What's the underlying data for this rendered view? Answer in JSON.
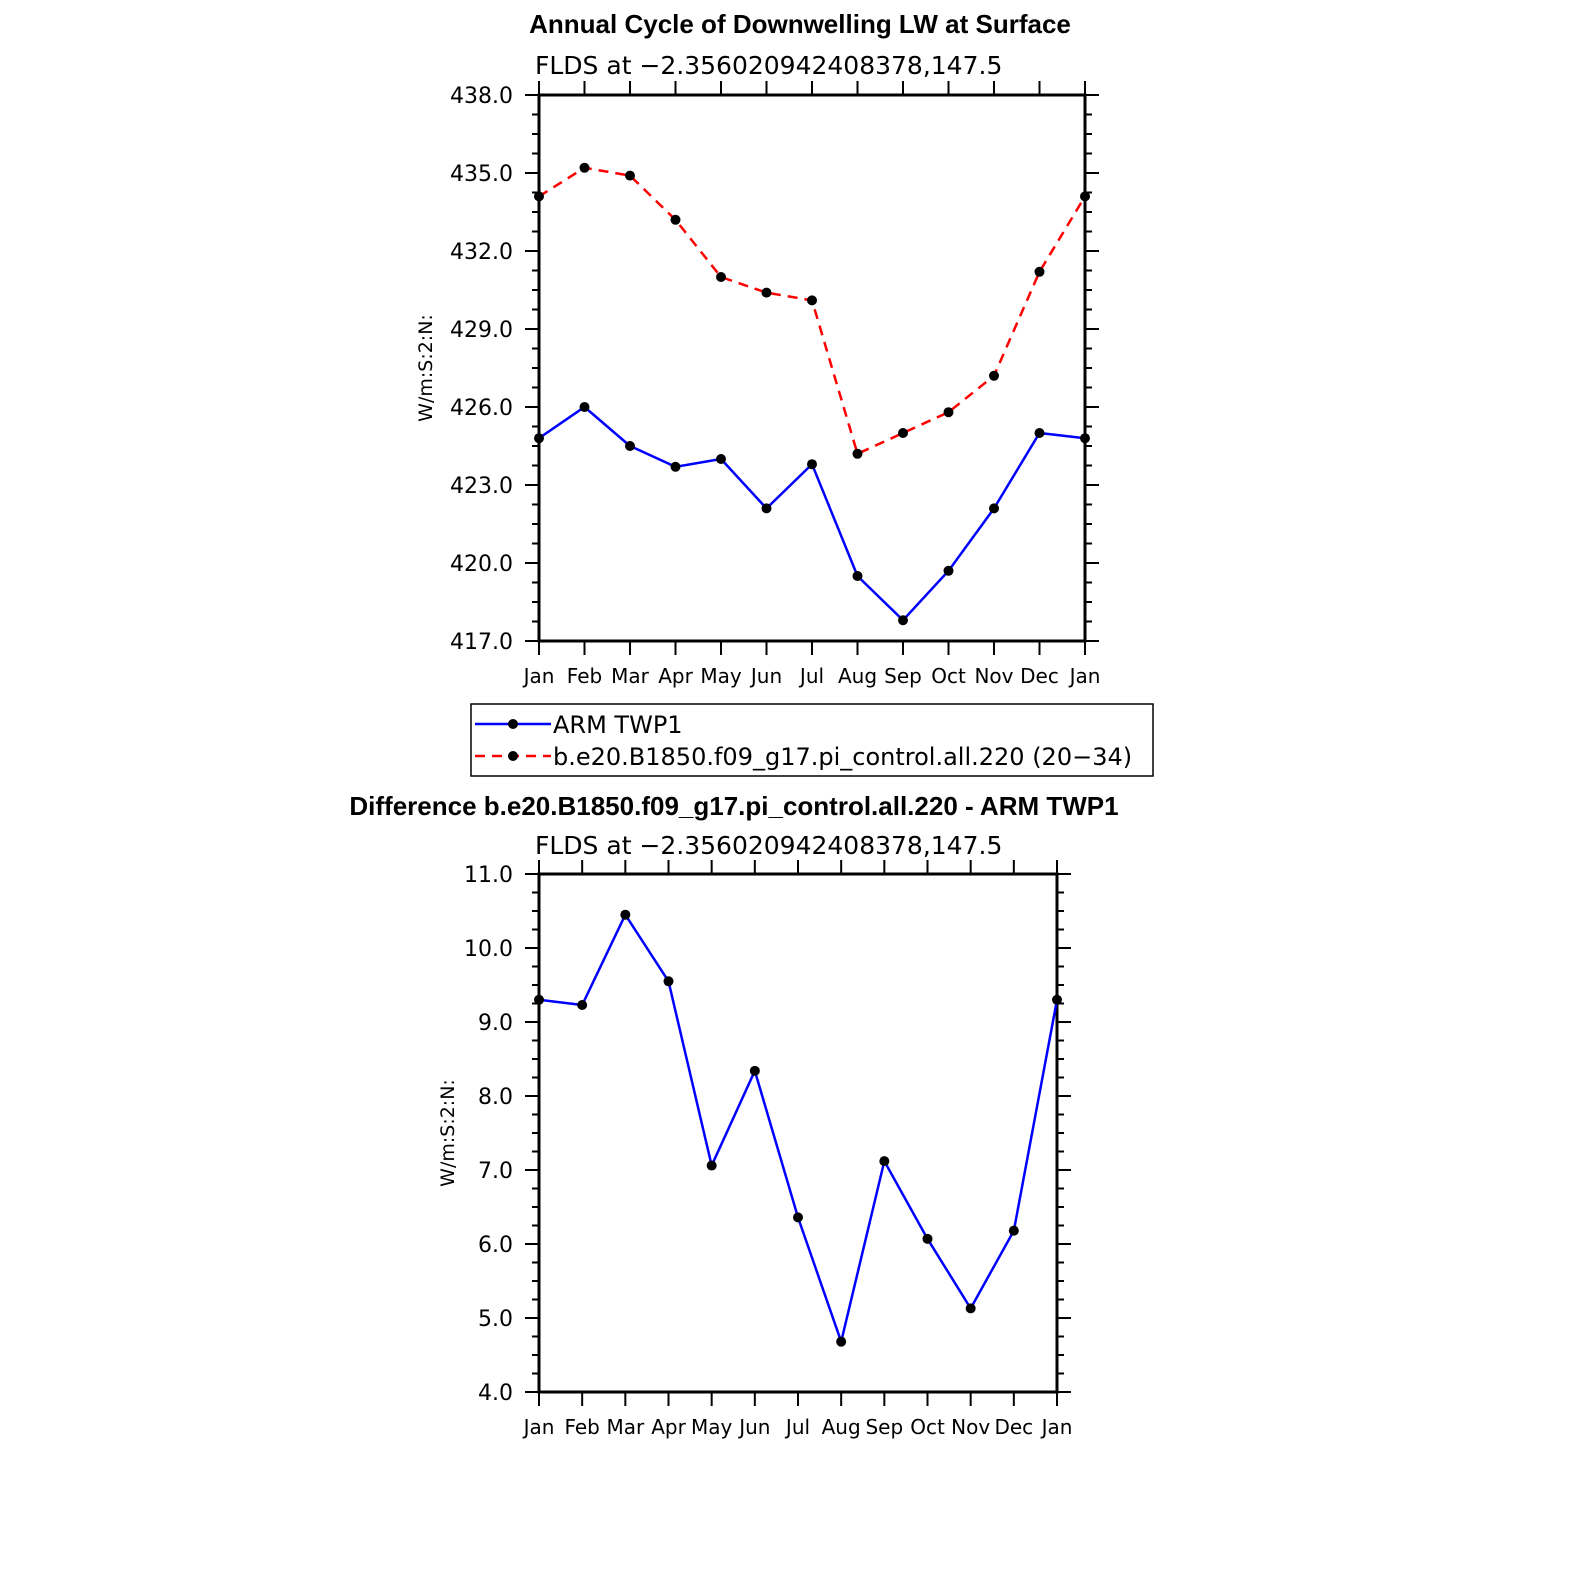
{
  "chart_data": [
    {
      "type": "line",
      "title": "Annual Cycle of Downwelling LW at Surface",
      "subtitle": "FLDS at −2.356020942408378,147.5",
      "ylabel": "W/m:S:2:N:",
      "ylim": [
        417.0,
        438.0
      ],
      "yticks": [
        "417.0",
        "420.0",
        "423.0",
        "426.0",
        "429.0",
        "432.0",
        "435.0",
        "438.0"
      ],
      "categories": [
        "Jan",
        "Feb",
        "Mar",
        "Apr",
        "May",
        "Jun",
        "Jul",
        "Aug",
        "Sep",
        "Oct",
        "Nov",
        "Dec",
        "Jan"
      ],
      "series": [
        {
          "name": "ARM TWP1",
          "color": "#0000ff",
          "dash": "solid",
          "values": [
            424.8,
            426.0,
            424.5,
            423.7,
            424.0,
            422.1,
            423.8,
            419.5,
            417.8,
            419.7,
            422.1,
            425.0,
            424.8
          ]
        },
        {
          "name": "b.e20.B1850.f09_g17.pi_control.all.220 (20−34)",
          "color": "#ff0000",
          "dash": "dashed",
          "values": [
            434.1,
            435.2,
            434.9,
            433.2,
            431.0,
            430.4,
            430.1,
            424.2,
            425.0,
            425.8,
            427.2,
            431.2,
            434.1
          ]
        }
      ],
      "legend": "bottom"
    },
    {
      "type": "line",
      "title": "Difference b.e20.B1850.f09_g17.pi_control.all.220 - ARM TWP1",
      "subtitle": "FLDS at −2.356020942408378,147.5",
      "ylabel": "W/m:S:2:N:",
      "ylim": [
        4.0,
        11.0
      ],
      "yticks": [
        "4.0",
        "5.0",
        "6.0",
        "7.0",
        "8.0",
        "9.0",
        "10.0",
        "11.0"
      ],
      "categories": [
        "Jan",
        "Feb",
        "Mar",
        "Apr",
        "May",
        "Jun",
        "Jul",
        "Aug",
        "Sep",
        "Oct",
        "Nov",
        "Dec",
        "Jan"
      ],
      "series": [
        {
          "color": "#0000ff",
          "dash": "solid",
          "values": [
            9.3,
            9.23,
            10.45,
            9.55,
            7.06,
            8.34,
            6.36,
            4.68,
            7.12,
            6.07,
            5.13,
            6.18,
            9.3
          ]
        }
      ]
    }
  ]
}
